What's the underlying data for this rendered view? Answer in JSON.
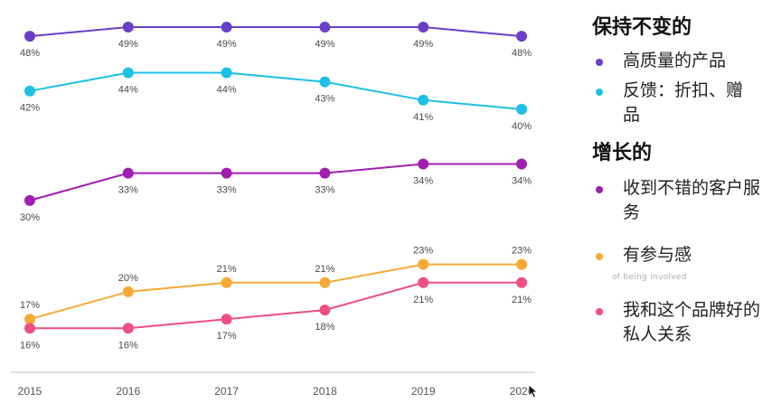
{
  "chart_data": {
    "type": "line",
    "title": "",
    "xlabel": "",
    "ylabel": "",
    "x": [
      "2015",
      "2016",
      "2017",
      "2018",
      "2019",
      "2020"
    ],
    "ylim": [
      15,
      50
    ],
    "grid": false,
    "legend_position": "right",
    "value_suffix": "%",
    "series": [
      {
        "key": "quality",
        "name": "高质量的产品",
        "group": "保持不变的",
        "color": "#6a3fc8",
        "values": [
          48,
          49,
          49,
          49,
          49,
          48
        ],
        "label_pos": [
          "below",
          "below",
          "below",
          "below",
          "below",
          "below"
        ]
      },
      {
        "key": "feedback",
        "name": "反馈：折扣、赠品",
        "group": "保持不变的",
        "color": "#1ec0e6",
        "values": [
          42,
          44,
          44,
          43,
          41,
          40
        ],
        "label_pos": [
          "below",
          "below",
          "below",
          "below",
          "below",
          "below"
        ]
      },
      {
        "key": "service",
        "name": "收到不错的客户服务",
        "group": "增长的",
        "color": "#a01fb0",
        "values": [
          30,
          33,
          33,
          33,
          34,
          34
        ],
        "label_pos": [
          "below",
          "below",
          "below",
          "below",
          "below",
          "below"
        ]
      },
      {
        "key": "involved",
        "name": "有参与感",
        "group": "增长的",
        "color": "#f6a935",
        "values": [
          17,
          20,
          21,
          21,
          23,
          23
        ],
        "label_pos": [
          "above",
          "above",
          "above",
          "above",
          "above",
          "above"
        ]
      },
      {
        "key": "relationship",
        "name": "我和这个品牌好的私人关系",
        "group": "增长的",
        "color": "#ee4f7e",
        "values": [
          16,
          16,
          17,
          18,
          21,
          21
        ],
        "label_pos": [
          "below",
          "below",
          "below",
          "below",
          "below",
          "below"
        ]
      }
    ]
  },
  "legend": {
    "groups": [
      {
        "heading": "保持不变的",
        "items": [
          {
            "label": "高质量的产品",
            "color": "#6a3fc8"
          },
          {
            "label": "反馈：折扣、赠品",
            "color": "#1ec0e6"
          }
        ]
      },
      {
        "heading": "增长的",
        "items": [
          {
            "label": "收到不错的客户服务",
            "color": "#a01fb0"
          },
          {
            "label": "有参与感",
            "color": "#f6a935"
          },
          {
            "label": "我和这个品牌好的私人关系",
            "color": "#ee4f7e"
          }
        ]
      }
    ],
    "ghost_caption": "of being involved"
  }
}
